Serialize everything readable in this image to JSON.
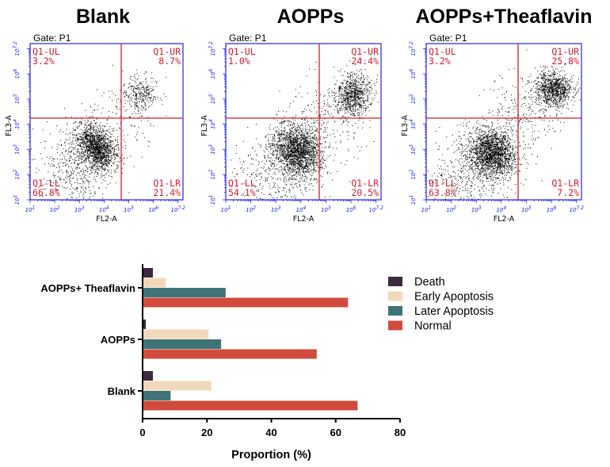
{
  "chart_data": [
    {
      "type": "scatter",
      "title": "Blank",
      "gate": "Gate: P1",
      "xlabel": "FL2-A",
      "ylabel": "FL3-A",
      "tick_labels": [
        "10^1",
        "10^2",
        "10^3",
        "10^4",
        "10^5",
        "10^6",
        "10^7.2"
      ],
      "quadrants": [
        {
          "name": "Q1-UL",
          "value": "3.2%"
        },
        {
          "name": "Q1-UR",
          "value": "8.7%"
        },
        {
          "name": "Q1-LL",
          "value": "66.8%"
        },
        {
          "name": "Q1-LR",
          "value": "21.4%"
        }
      ]
    },
    {
      "type": "scatter",
      "title": "AOPPs",
      "gate": "Gate: P1",
      "xlabel": "FL2-A",
      "ylabel": "FL3-A",
      "tick_labels": [
        "10^1",
        "10^2",
        "10^3",
        "10^4",
        "10^5",
        "10^6",
        "10^7.2"
      ],
      "quadrants": [
        {
          "name": "Q1-UL",
          "value": "1.0%"
        },
        {
          "name": "Q1-UR",
          "value": "24.4%"
        },
        {
          "name": "Q1-LL",
          "value": "54.1%"
        },
        {
          "name": "Q1-LR",
          "value": "20.5%"
        }
      ]
    },
    {
      "type": "scatter",
      "title": "AOPPs+Theaflavin",
      "gate": "Gate: P1",
      "xlabel": "FL2-A",
      "ylabel": "FL3-A",
      "tick_labels": [
        "10^1",
        "10^2",
        "10^3",
        "10^4",
        "10^5",
        "10^6",
        "10^7.2"
      ],
      "quadrants": [
        {
          "name": "Q1-UL",
          "value": "3.2%"
        },
        {
          "name": "Q1-UR",
          "value": "25.8%"
        },
        {
          "name": "Q1-LL",
          "value": "63.8%"
        },
        {
          "name": "Q1-LR",
          "value": "7.2%"
        }
      ]
    },
    {
      "type": "bar",
      "orientation": "horizontal",
      "categories": [
        "AOPPs+ Theaflavin",
        "AOPPs",
        "Blank"
      ],
      "series": [
        {
          "name": "Death",
          "color": "#3b2a3d",
          "values": [
            3.2,
            1.0,
            3.2
          ]
        },
        {
          "name": "Early Apoptosis",
          "color": "#f2d8bb",
          "values": [
            7.2,
            20.5,
            21.4
          ]
        },
        {
          "name": "Later Apoptosis",
          "color": "#3e7477",
          "values": [
            25.8,
            24.4,
            8.7
          ]
        },
        {
          "name": "Normal",
          "color": "#d14b3c",
          "values": [
            63.8,
            54.1,
            66.8
          ]
        }
      ],
      "xlabel": "Proportion (%)",
      "xlim": [
        0,
        80
      ],
      "xticks": [
        0,
        20,
        40,
        60,
        80
      ],
      "legend_position": "right"
    }
  ]
}
